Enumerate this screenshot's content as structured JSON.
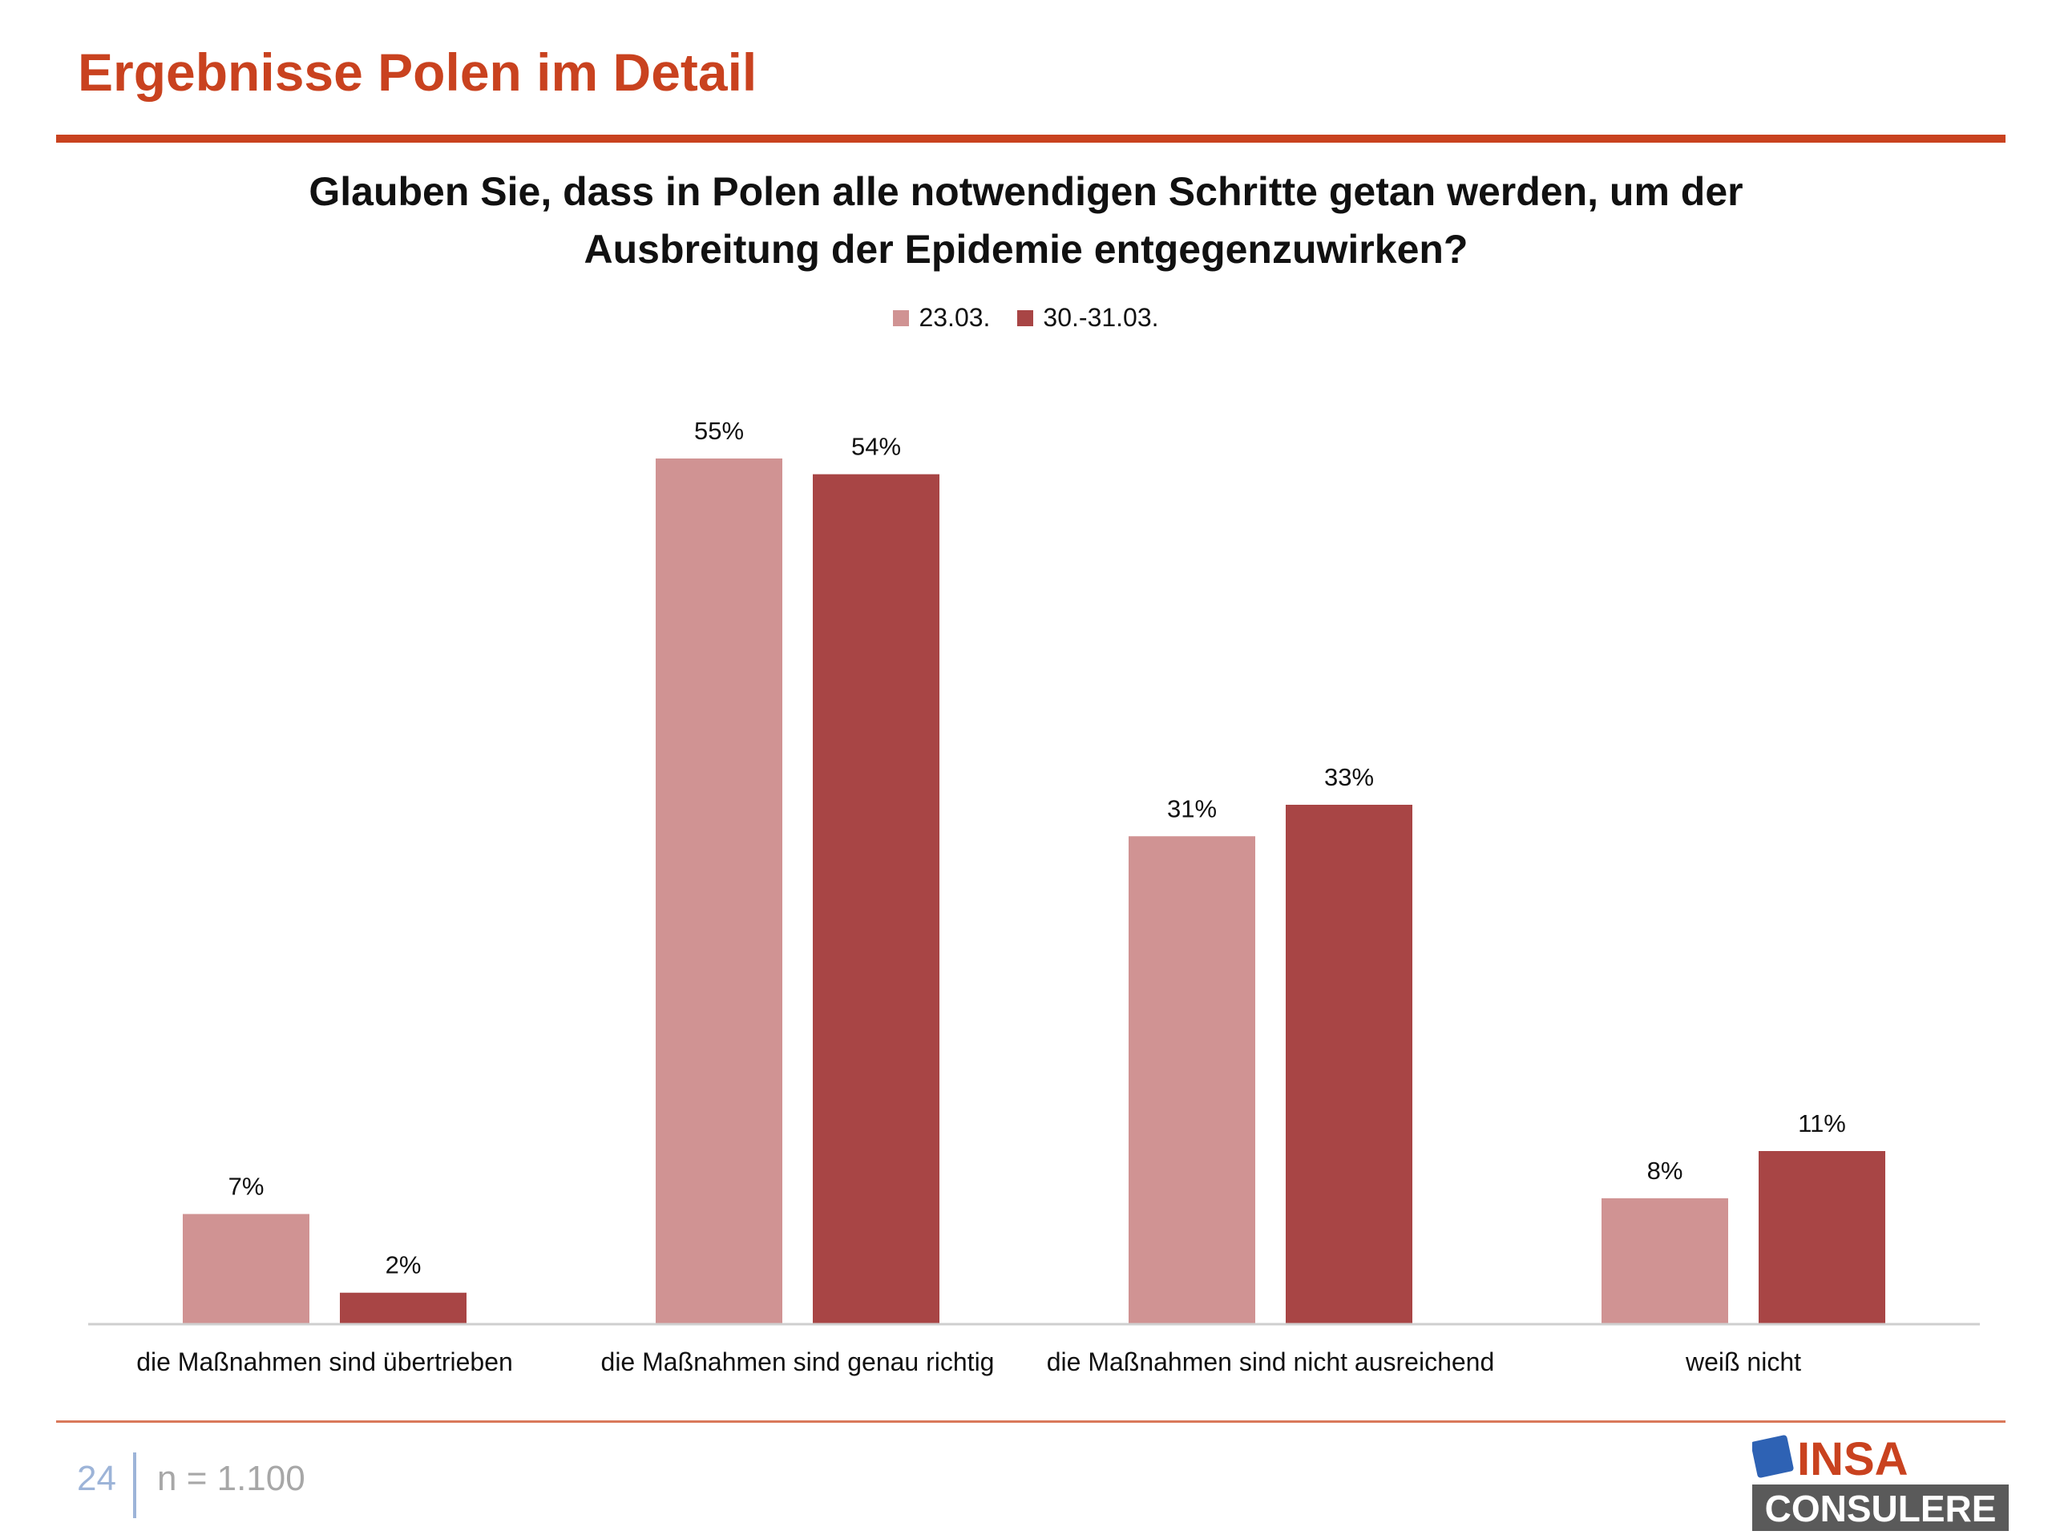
{
  "header": {
    "title": "Ergebnisse Polen im Detail"
  },
  "question": {
    "line1": "Glauben Sie, dass in Polen alle notwendigen Schritte getan werden, um der",
    "line2": "Ausbreitung der Epidemie entgegenzuwirken?"
  },
  "chart_data": {
    "type": "bar",
    "categories": [
      "die Maßnahmen sind übertrieben",
      "die Maßnahmen sind genau richtig",
      "die Maßnahmen sind nicht ausreichend",
      "weiß nicht"
    ],
    "series": [
      {
        "name": "23.03.",
        "values": [
          7,
          55,
          31,
          8
        ],
        "color": "#d09393"
      },
      {
        "name": "30.-31.03.",
        "values": [
          2,
          54,
          33,
          11
        ],
        "color": "#a84545"
      }
    ],
    "value_suffix": "%",
    "ylim": [
      0,
      60
    ],
    "grid": false,
    "legend_position": "top-center"
  },
  "footer": {
    "page_number": "24",
    "sample": "n = 1.100"
  },
  "logo": {
    "word1": "INSA",
    "word2": "CONSULERE",
    "accent": "#2e62b4",
    "brand_red": "#c9421f",
    "dark": "#5a5a5a"
  }
}
